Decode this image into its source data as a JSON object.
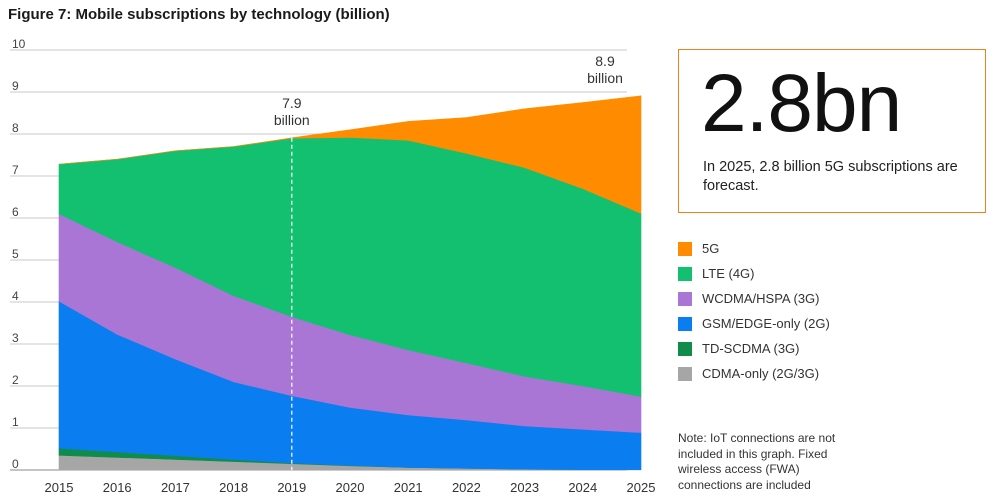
{
  "title": "Figure 7: Mobile subscriptions by technology (billion)",
  "callout": {
    "value": "2.8bn",
    "text": "In 2025, 2.8 billion 5G subscriptions are forecast.",
    "border_color": "#f07f1d"
  },
  "note": "Note: IoT connections are not included in this graph. Fixed wireless access (FWA) connections are included",
  "annotations": [
    {
      "year": 2019,
      "value_label": "7.9",
      "unit_label": "billion"
    },
    {
      "year": 2025,
      "value_label": "8.9",
      "unit_label": "billion"
    }
  ],
  "chart_data": {
    "type": "area",
    "stacked": true,
    "x": [
      2015,
      2016,
      2017,
      2018,
      2019,
      2020,
      2021,
      2022,
      2023,
      2024,
      2025
    ],
    "x_tick_labels": [
      "2015",
      "2016",
      "2017",
      "2018",
      "2019",
      "2020",
      "2021",
      "2022",
      "2023",
      "2024",
      "2025"
    ],
    "y_ticks": [
      0,
      1,
      2,
      3,
      4,
      5,
      6,
      7,
      8,
      9,
      10
    ],
    "ylim": [
      0,
      10
    ],
    "grid": "horizontal",
    "dashed_marker_x": 2019,
    "series": [
      {
        "name": "CDMA-only (2G/3G)",
        "color": "#a6a6a6",
        "values": [
          0.35,
          0.3,
          0.25,
          0.2,
          0.15,
          0.1,
          0.06,
          0.04,
          0.02,
          0.01,
          0.01
        ]
      },
      {
        "name": "TD-SCDMA (3G)",
        "color": "#0f8c4a",
        "values": [
          0.17,
          0.13,
          0.09,
          0.05,
          0.02,
          0.01,
          0.0,
          0.0,
          0.0,
          0.0,
          0.0
        ]
      },
      {
        "name": "GSM/EDGE-only (2G)",
        "color": "#0a7ef0",
        "values": [
          3.5,
          2.8,
          2.3,
          1.85,
          1.6,
          1.38,
          1.25,
          1.15,
          1.03,
          0.96,
          0.88
        ]
      },
      {
        "name": "WCDMA/HSPA (3G)",
        "color": "#a976d6",
        "values": [
          2.08,
          2.2,
          2.18,
          2.05,
          1.88,
          1.73,
          1.55,
          1.36,
          1.18,
          1.03,
          0.86
        ]
      },
      {
        "name": "LTE (4G)",
        "color": "#12c070",
        "values": [
          1.18,
          1.97,
          2.78,
          3.55,
          4.25,
          4.7,
          4.99,
          4.99,
          4.97,
          4.7,
          4.36
        ]
      },
      {
        "name": "5G",
        "color": "#ff8c00",
        "values": [
          0.0,
          0.0,
          0.0,
          0.0,
          0.01,
          0.18,
          0.45,
          0.85,
          1.4,
          2.05,
          2.8
        ]
      }
    ],
    "totals": [
      7.28,
      7.4,
      7.6,
      7.7,
      7.91,
      8.1,
      8.3,
      8.39,
      8.6,
      8.75,
      8.91
    ]
  }
}
